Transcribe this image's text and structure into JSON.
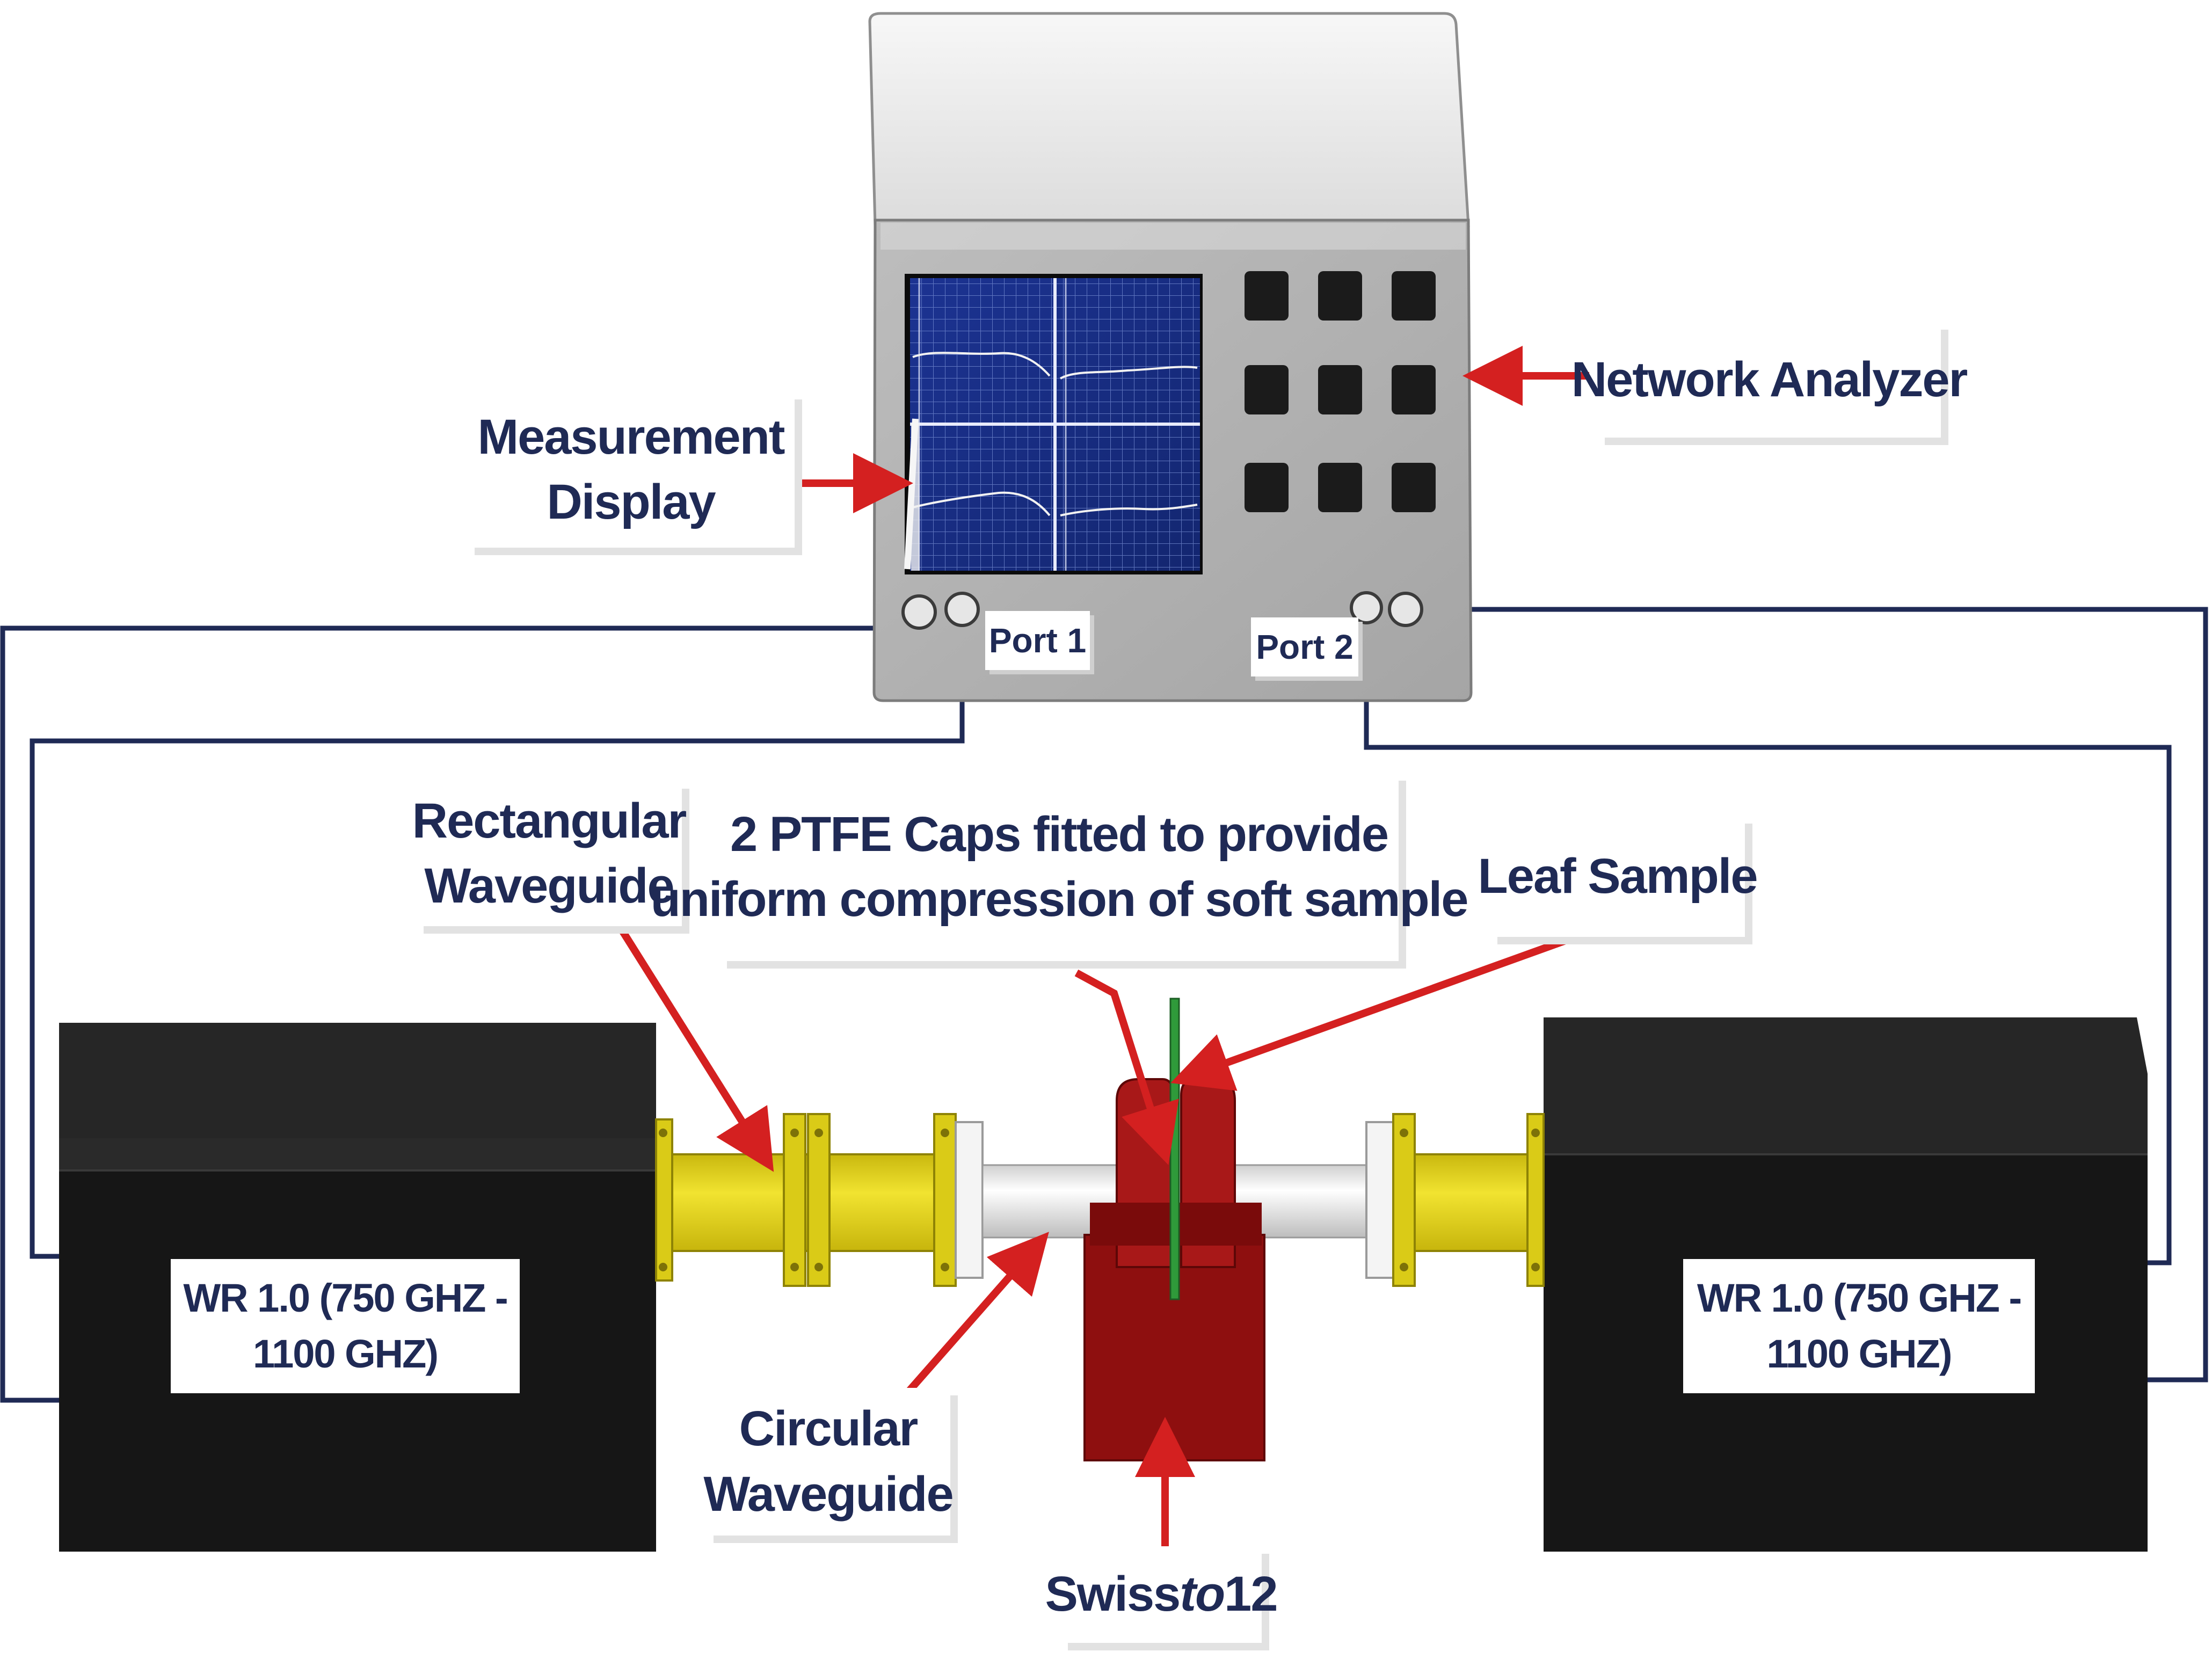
{
  "labels": {
    "measurement_display": [
      "Measurement",
      "Display"
    ],
    "network_analyzer": "Network Analyzer",
    "port1": "Port 1",
    "port2": "Port 2",
    "rectangular_waveguide": [
      "Rectangular",
      "Waveguide"
    ],
    "ptfe_caps": [
      "2 PTFE Caps fitted to provide",
      "uniform compression of soft sample"
    ],
    "leaf_sample": "Leaf Sample",
    "circular_waveguide": [
      "Circular",
      "Waveguide"
    ],
    "swissto12": {
      "pre": "Swiss",
      "italic": "to",
      "post": "12"
    },
    "extender_left": [
      "WR 1.0 (750 GHZ -",
      "1100 GHZ)"
    ],
    "extender_right": [
      "WR 1.0 (750 GHZ -",
      "1100 GHZ)"
    ]
  },
  "colors": {
    "cable": "#1f2a55",
    "arrow": "#d42020",
    "screen": "#1a2f8a",
    "waveguide_gold": "#e2d21a",
    "holder_red": "#8e0f0f",
    "extender_black": "#1c1c1c",
    "text": "#1f2a55"
  },
  "icons": {
    "keypad_buttons": 9
  }
}
